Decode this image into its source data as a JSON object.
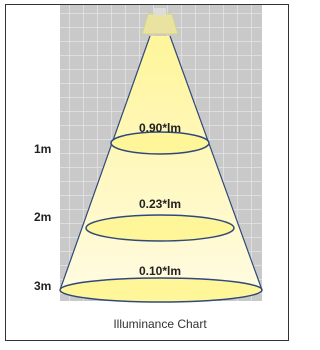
{
  "rows": [
    {
      "distance": "1m",
      "value": "0.90*lm"
    },
    {
      "distance": "2m",
      "value": "0.23*lm"
    },
    {
      "distance": "3m",
      "value": "0.10*lm"
    }
  ],
  "caption": "Illuminance Chart"
}
